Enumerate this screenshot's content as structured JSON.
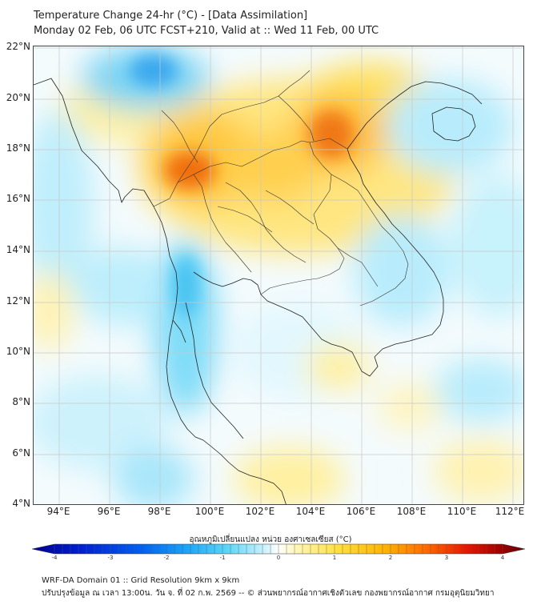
{
  "title_line1": "Temperature Change 24-hr (°C) - [Data Assimilation]",
  "title_line2": "Monday 02 Feb, 06 UTC FCST+210, Valid at :: Wed 11 Feb, 00 UTC",
  "lat_labels": [
    "22°N",
    "20°N",
    "18°N",
    "16°N",
    "14°N",
    "12°N",
    "10°N",
    "8°N",
    "6°N",
    "4°N"
  ],
  "lon_labels": [
    "94°E",
    "96°E",
    "98°E",
    "100°E",
    "102°E",
    "104°E",
    "106°E",
    "108°E",
    "110°E",
    "112°E"
  ],
  "colorbar": {
    "title": "อุณหภูมิเปลี่ยนแปลง หน่วย องศาเซลเซียส (°C)",
    "ticks": [
      "-4",
      "-3",
      "-2",
      "-1",
      "0",
      "1",
      "2",
      "3",
      "4"
    ],
    "colors": [
      "#00008f",
      "#0020d0",
      "#0060f0",
      "#20a8f8",
      "#60d8f8",
      "#c8f2fc",
      "#ffffff",
      "#fff6b0",
      "#ffe040",
      "#ffb000",
      "#ff6a00",
      "#e81800",
      "#a00000",
      "#600000"
    ]
  },
  "footer_line1": "WRF-DA Domain 01 :: Grid Resolution 9km x 9km",
  "footer_line2": "ปรับปรุงข้อมูล ณ เวลา 13:00น. วัน จ. ที่ 02 ก.พ. 2569 -- © ส่วนพยากรณ์อากาศเชิงตัวเลข กองพยากรณ์อากาศ กรมอุตุนิยมวิทยา"
}
